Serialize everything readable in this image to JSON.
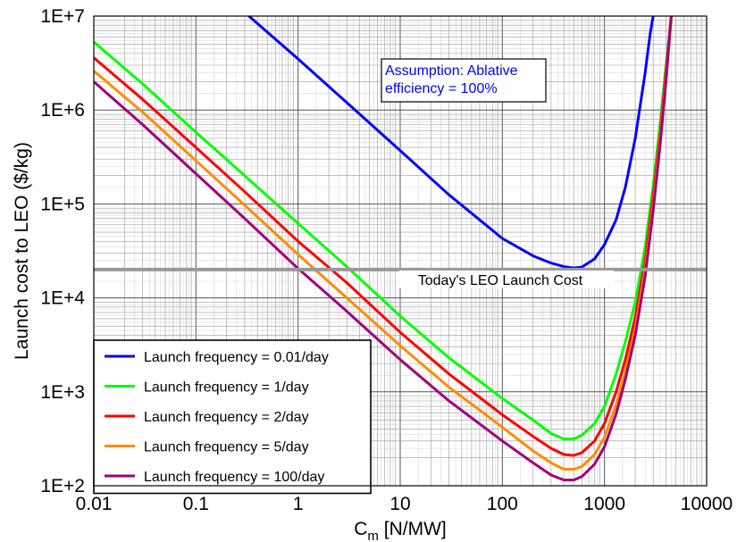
{
  "chart_data": {
    "type": "line",
    "title": "",
    "xlabel": "C",
    "xlabel_sub": "m",
    "xlabel_unit": " [N/MW]",
    "ylabel": "Launch cost to LEO ($/kg)",
    "xscale": "log",
    "yscale": "log",
    "xlim": [
      0.01,
      10000
    ],
    "ylim": [
      100,
      10000000
    ],
    "x_ticks": [
      0.01,
      0.1,
      1,
      10,
      100,
      1000,
      10000
    ],
    "x_tick_labels": [
      "0.01",
      "0.1",
      "1",
      "10",
      "100",
      "1000",
      "10000"
    ],
    "y_ticks": [
      100,
      1000,
      10000,
      100000,
      1000000,
      10000000
    ],
    "y_tick_labels": [
      "1E+2",
      "1E+3",
      "1E+4",
      "1E+5",
      "1E+6",
      "1E+7"
    ],
    "grid": true,
    "legend_position": "bottom-left",
    "series": [
      {
        "name": "Launch frequency = 0.01/day",
        "color": "#0000ff",
        "x": [
          0.33,
          1,
          3,
          10,
          30,
          100,
          200,
          300,
          400,
          500,
          600,
          800,
          1000,
          1300,
          1600,
          2000,
          2500,
          2800,
          3000
        ],
        "y": [
          10000000,
          3500000,
          1200000,
          370000,
          125000,
          43000,
          28000,
          23500,
          21500,
          20800,
          21300,
          26000,
          37000,
          68000,
          150000,
          500000,
          2500000,
          6500000,
          10000000
        ]
      },
      {
        "name": "Launch frequency = 1/day",
        "color": "#00ff00",
        "x": [
          0.01,
          0.03,
          0.1,
          0.3,
          1,
          3,
          10,
          30,
          100,
          200,
          300,
          400,
          500,
          600,
          800,
          1000,
          1300,
          1600,
          2000,
          2500,
          3000,
          3500,
          4000,
          4500
        ],
        "y": [
          5300000,
          1900000,
          580000,
          200000,
          62000,
          21500,
          6400,
          2300,
          850,
          500,
          360,
          315,
          315,
          345,
          460,
          700,
          1550,
          3400,
          9000,
          35000,
          160000,
          700000,
          3000000,
          10000000
        ]
      },
      {
        "name": "Launch frequency = 2/day",
        "color": "#ff0000",
        "x": [
          0.01,
          0.03,
          0.1,
          0.3,
          1,
          3,
          10,
          30,
          100,
          200,
          300,
          400,
          500,
          600,
          800,
          1000,
          1300,
          1600,
          2000,
          2500,
          3000,
          3500,
          4000,
          4500
        ],
        "y": [
          3600000,
          1300000,
          400000,
          135000,
          40000,
          14500,
          4300,
          1550,
          570,
          335,
          250,
          215,
          210,
          225,
          300,
          460,
          1000,
          2200,
          6200,
          25000,
          120000,
          560000,
          2600000,
          10000000
        ]
      },
      {
        "name": "Launch frequency = 5/day",
        "color": "#ff8c00",
        "x": [
          0.01,
          0.03,
          0.1,
          0.3,
          1,
          3,
          10,
          30,
          100,
          200,
          300,
          400,
          500,
          600,
          800,
          1000,
          1300,
          1600,
          2000,
          2500,
          3000,
          3500,
          4000,
          4500
        ],
        "y": [
          2600000,
          950000,
          290000,
          97000,
          29000,
          10000,
          3100,
          1120,
          420,
          235,
          175,
          150,
          150,
          160,
          215,
          330,
          720,
          1650,
          4800,
          20000,
          95000,
          470000,
          2200000,
          10000000
        ]
      },
      {
        "name": "Launch frequency = 100/day",
        "color": "#a0007a",
        "x": [
          0.01,
          0.03,
          0.1,
          0.3,
          1,
          3,
          10,
          30,
          100,
          200,
          300,
          400,
          500,
          600,
          800,
          1000,
          1300,
          1600,
          2000,
          2500,
          3000,
          3500,
          4000,
          4500
        ],
        "y": [
          2000000,
          700000,
          210000,
          70000,
          20500,
          7200,
          2200,
          800,
          300,
          175,
          130,
          115,
          115,
          125,
          170,
          260,
          580,
          1350,
          4000,
          17000,
          85000,
          420000,
          2000000,
          10000000
        ]
      }
    ],
    "reference_line": {
      "label": "Today's LEO Launch Cost",
      "y": 20000,
      "color": "#999999"
    },
    "annotation": {
      "lines": [
        "Assumption: Ablative",
        "efficiency = 100%"
      ],
      "color": "#0000ff"
    }
  }
}
